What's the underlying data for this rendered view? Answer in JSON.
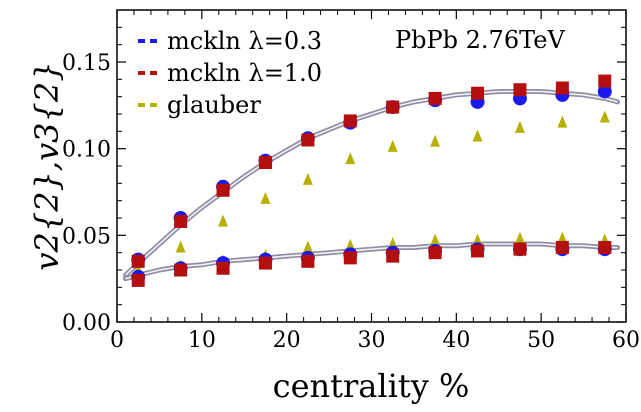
{
  "chart_data": {
    "type": "scatter",
    "annotation": "PbPb 2.76TeV",
    "xlabel": "centrality %",
    "ylabel": "v2{2},v3{2}",
    "xlim": [
      0,
      60
    ],
    "ylim": [
      0,
      0.18
    ],
    "x_ticks": [
      "0",
      "10",
      "20",
      "30",
      "40",
      "50",
      "60"
    ],
    "y_ticks": [
      "0.00",
      "0.05",
      "0.10",
      "0.15"
    ],
    "x_tick_values": [
      0,
      10,
      20,
      30,
      40,
      50,
      60
    ],
    "y_tick_values": [
      0,
      0.05,
      0.1,
      0.15
    ],
    "legend_position": "top-left",
    "legend": [
      {
        "name": "mckln λ=0.3",
        "color": "#1a1aee",
        "marker": "circle"
      },
      {
        "name": "mckln λ=1.0",
        "color": "#b40f0f",
        "marker": "square"
      },
      {
        "name": "glauber",
        "color": "#b8b000",
        "marker": "triangle"
      }
    ],
    "x": [
      2.5,
      7.5,
      12.5,
      17.5,
      22.5,
      27.5,
      32.5,
      37.5,
      42.5,
      47.5,
      52.5,
      57.5
    ],
    "series": [
      {
        "legend_index": 0,
        "group": "v2",
        "values": [
          0.036,
          0.06,
          0.078,
          0.093,
          0.106,
          0.115,
          0.124,
          0.128,
          0.127,
          0.129,
          0.131,
          0.133
        ]
      },
      {
        "legend_index": 1,
        "group": "v2",
        "values": [
          0.035,
          0.058,
          0.076,
          0.092,
          0.105,
          0.116,
          0.124,
          0.129,
          0.132,
          0.134,
          0.135,
          0.139
        ]
      },
      {
        "legend_index": 2,
        "group": "v2",
        "values": [
          0.03,
          0.043,
          0.058,
          0.071,
          0.082,
          0.094,
          0.101,
          0.104,
          0.107,
          0.112,
          0.115,
          0.118
        ]
      },
      {
        "legend_index": 0,
        "group": "v3",
        "values": [
          0.026,
          0.031,
          0.034,
          0.036,
          0.037,
          0.039,
          0.04,
          0.041,
          0.042,
          0.042,
          0.042,
          0.042
        ]
      },
      {
        "legend_index": 1,
        "group": "v3",
        "values": [
          0.024,
          0.03,
          0.031,
          0.034,
          0.035,
          0.037,
          0.038,
          0.04,
          0.041,
          0.042,
          0.043,
          0.043
        ]
      },
      {
        "legend_index": 2,
        "group": "v3",
        "values": [
          0.026,
          0.032,
          0.035,
          0.038,
          0.043,
          0.044,
          0.045,
          0.047,
          0.047,
          0.048,
          0.048,
          0.047
        ]
      }
    ],
    "curves": [
      {
        "group": "v2",
        "x": [
          1,
          2.5,
          5,
          7.5,
          10,
          12.5,
          15,
          17.5,
          20,
          22.5,
          25,
          27.5,
          30,
          32.5,
          35,
          37.5,
          40,
          42.5,
          45,
          47.5,
          50,
          52.5,
          55,
          57.5,
          59
        ],
        "y": [
          0.027,
          0.034,
          0.045,
          0.056,
          0.066,
          0.075,
          0.084,
          0.092,
          0.099,
          0.106,
          0.111,
          0.116,
          0.12,
          0.124,
          0.127,
          0.129,
          0.131,
          0.132,
          0.133,
          0.133,
          0.133,
          0.132,
          0.131,
          0.129,
          0.127
        ]
      },
      {
        "group": "v3",
        "x": [
          1,
          2.5,
          5,
          7.5,
          10,
          12.5,
          15,
          17.5,
          20,
          22.5,
          25,
          27.5,
          30,
          32.5,
          35,
          37.5,
          40,
          42.5,
          45,
          47.5,
          50,
          52.5,
          55,
          57.5,
          59
        ],
        "y": [
          0.025,
          0.027,
          0.03,
          0.032,
          0.033,
          0.035,
          0.036,
          0.037,
          0.038,
          0.039,
          0.04,
          0.041,
          0.042,
          0.043,
          0.043,
          0.044,
          0.044,
          0.045,
          0.045,
          0.045,
          0.045,
          0.044,
          0.044,
          0.043,
          0.043
        ]
      }
    ]
  }
}
